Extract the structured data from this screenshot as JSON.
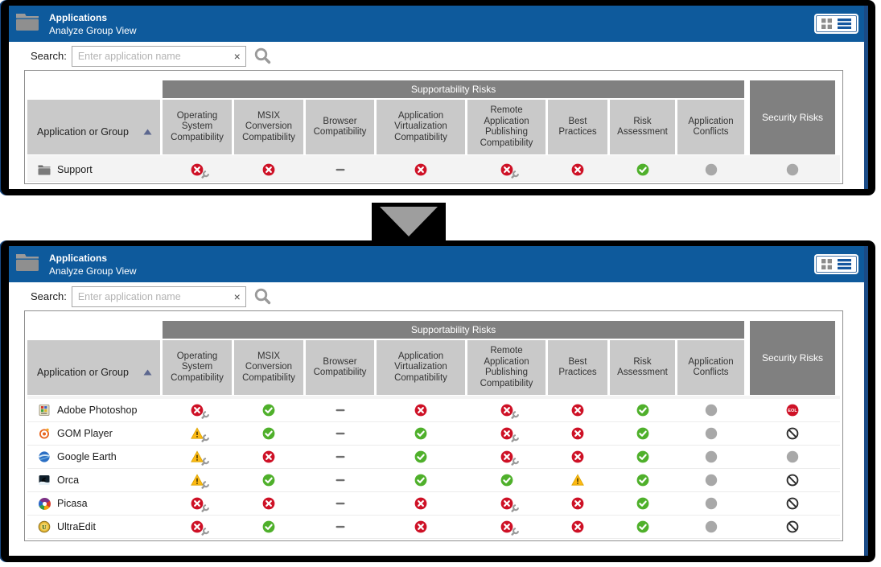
{
  "colors": {
    "header_blue": "#0E5A9C",
    "band_gray": "#808080",
    "subheader_gray": "#C9C9C9",
    "edge_blue": "#1A4B86",
    "status_red": "#CE1126",
    "status_green": "#4FB02B",
    "status_yellow": "#FDB913",
    "status_neutral": "#A8A8A8",
    "wrench_gray": "#9A9A9A",
    "dash_gray": "#6E6E6E",
    "blocked_dark": "#2D2D2D",
    "arrow_gray": "#9E9E9E",
    "frame_black": "#000000"
  },
  "header": {
    "title": "Applications",
    "subtitle": "Analyze Group View",
    "folder_icon": "folder-icon",
    "view_toggle": {
      "grid_icon": "grid-view-icon",
      "list_icon": "list-view-icon"
    }
  },
  "search": {
    "label": "Search:",
    "placeholder": "Enter application name",
    "clear": "×",
    "search_icon": "search-icon"
  },
  "table": {
    "app_column_header": "Application or Group",
    "sort_direction": "ascending",
    "group_header": "Supportability Risks",
    "security_header": "Security Risks",
    "columns": [
      "Operating System Compatibility",
      "MSIX Conversion Compatibility",
      "Browser Compatibility",
      "Application Virtualization Compatibility",
      "Remote Application Publishing Compatibility",
      "Best Practices",
      "Risk Assessment",
      "Application Conflicts"
    ]
  },
  "transition": {
    "icon": "down-arrow-icon"
  },
  "panels": [
    {
      "name": "group-summary-view",
      "rows": [
        {
          "label": "Support",
          "icon": "folder",
          "statuses": [
            "error_wrench",
            "error",
            "dash",
            "error",
            "error_wrench",
            "error",
            "ok",
            "neutral",
            "neutral"
          ]
        }
      ]
    },
    {
      "name": "group-expanded-view",
      "rows": [
        {
          "label": "Adobe Photoshop",
          "icon": "photoshop",
          "statuses": [
            "error_wrench",
            "ok",
            "dash",
            "error",
            "error_wrench",
            "error",
            "ok",
            "neutral",
            "eol"
          ]
        },
        {
          "label": "GOM Player",
          "icon": "gom-player",
          "statuses": [
            "warning_wrench",
            "ok",
            "dash",
            "ok",
            "error_wrench",
            "error",
            "ok",
            "neutral",
            "blocked"
          ]
        },
        {
          "label": "Google Earth",
          "icon": "google-earth",
          "statuses": [
            "warning_wrench",
            "error",
            "dash",
            "ok",
            "error_wrench",
            "error",
            "ok",
            "neutral",
            "neutral"
          ]
        },
        {
          "label": "Orca",
          "icon": "orca",
          "statuses": [
            "warning_wrench",
            "ok",
            "dash",
            "ok",
            "ok",
            "warning",
            "ok",
            "neutral",
            "blocked"
          ]
        },
        {
          "label": "Picasa",
          "icon": "picasa",
          "statuses": [
            "error_wrench",
            "error",
            "dash",
            "error",
            "error_wrench",
            "error",
            "ok",
            "neutral",
            "blocked"
          ]
        },
        {
          "label": "UltraEdit",
          "icon": "ultraedit",
          "statuses": [
            "error_wrench",
            "ok",
            "dash",
            "error",
            "error_wrench",
            "error",
            "ok",
            "neutral",
            "blocked"
          ]
        }
      ]
    }
  ]
}
